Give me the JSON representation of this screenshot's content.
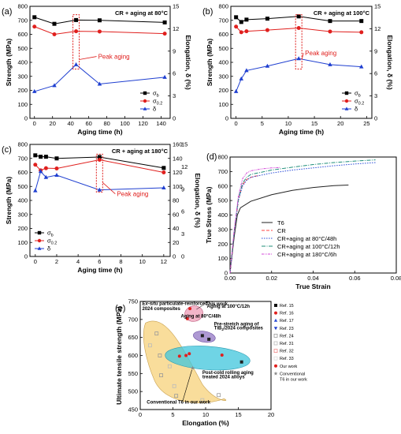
{
  "chart_data": [
    {
      "id": "a",
      "type": "line",
      "panel_label": "(a)",
      "title": "CR + aging at 80°C",
      "xlabel": "Aging time (h)",
      "ylabel": "Strength (MPa)",
      "y2label": "Elongation, δ (%)",
      "xlim": [
        -5,
        150
      ],
      "xticks": [
        0,
        20,
        40,
        60,
        80,
        100,
        120,
        140
      ],
      "ylim": [
        0,
        800
      ],
      "yticks": [
        0,
        100,
        200,
        300,
        400,
        500,
        600,
        700,
        800
      ],
      "y2lim": [
        0,
        15
      ],
      "y2ticks": [
        0,
        3,
        6,
        9,
        12,
        15
      ],
      "peak_label": "Peak aging",
      "series": [
        {
          "name": "σb",
          "legend": "σ",
          "legend_sub": "b",
          "color": "#000000",
          "marker": "square",
          "axis": "left",
          "x": [
            0,
            22,
            46,
            72,
            144
          ],
          "y": [
            722,
            675,
            702,
            700,
            685
          ]
        },
        {
          "name": "σ0.2",
          "legend": "σ",
          "legend_sub": "0.2",
          "color": "#e0201e",
          "marker": "circle",
          "axis": "left",
          "x": [
            0,
            22,
            46,
            72,
            144
          ],
          "y": [
            655,
            600,
            622,
            620,
            605
          ]
        },
        {
          "name": "δ",
          "legend": "δ",
          "legend_sub": "",
          "color": "#1f3fd0",
          "marker": "triangle",
          "axis": "right",
          "x": [
            0,
            22,
            46,
            72,
            144
          ],
          "y": [
            3.6,
            4.4,
            7.2,
            4.6,
            5.5
          ]
        }
      ]
    },
    {
      "id": "b",
      "type": "line",
      "panel_label": "(b)",
      "title": "CR + aging at 100°C",
      "xlabel": "Aging time (h)",
      "ylabel": "Strength (MPa)",
      "y2label": "Elongation, δ (%)",
      "xlim": [
        -1,
        26
      ],
      "xticks": [
        0,
        5,
        10,
        15,
        20,
        25
      ],
      "ylim": [
        0,
        800
      ],
      "yticks": [
        0,
        100,
        200,
        300,
        400,
        500,
        600,
        700,
        800
      ],
      "y2lim": [
        0,
        15
      ],
      "y2ticks": [
        0,
        3,
        6,
        9,
        12,
        15
      ],
      "peak_label": "Peak aging",
      "series": [
        {
          "name": "σb",
          "legend": "σ",
          "legend_sub": "b",
          "color": "#000000",
          "marker": "square",
          "axis": "left",
          "x": [
            0,
            1,
            2,
            6,
            12,
            18,
            24
          ],
          "y": [
            722,
            688,
            705,
            712,
            728,
            695,
            695
          ]
        },
        {
          "name": "σ0.2",
          "legend": "σ",
          "legend_sub": "0.2",
          "color": "#e0201e",
          "marker": "circle",
          "axis": "left",
          "x": [
            0,
            1,
            2,
            6,
            12,
            18,
            24
          ],
          "y": [
            655,
            615,
            622,
            630,
            645,
            620,
            615
          ]
        },
        {
          "name": "δ",
          "legend": "δ",
          "legend_sub": "",
          "color": "#1f3fd0",
          "marker": "triangle",
          "axis": "right",
          "x": [
            0,
            1,
            2,
            6,
            12,
            18,
            24
          ],
          "y": [
            3.6,
            5.3,
            6.4,
            7.0,
            8.0,
            7.2,
            6.9
          ]
        }
      ]
    },
    {
      "id": "c",
      "type": "line",
      "panel_label": "(c)",
      "title": "CR + aging at 180°C",
      "xlabel": "Aging time (h)",
      "ylabel": "Strength (MPa)",
      "y2label": "Elongation, δ (%)",
      "xlim": [
        -0.5,
        12.6
      ],
      "xticks": [
        0,
        2,
        4,
        6,
        8,
        10,
        12
      ],
      "ylim": [
        0,
        800
      ],
      "yticks": [
        0,
        100,
        200,
        300,
        400,
        500,
        600,
        700,
        800
      ],
      "y2lim": [
        0,
        160
      ],
      "y2ticks": [
        0,
        20,
        40,
        60,
        80,
        100,
        120,
        140,
        160
      ],
      "y2ticks_mirror": [
        0,
        3,
        6,
        9,
        12,
        15
      ],
      "peak_label": "Peak aging",
      "series": [
        {
          "name": "σb",
          "legend": "σ",
          "legend_sub": "b",
          "color": "#000000",
          "marker": "square",
          "axis": "left",
          "x": [
            0,
            0.5,
            1,
            2,
            6,
            12
          ],
          "y": [
            722,
            712,
            712,
            700,
            710,
            632
          ]
        },
        {
          "name": "σ0.2",
          "legend": "σ",
          "legend_sub": "0.2",
          "color": "#e0201e",
          "marker": "circle",
          "axis": "left",
          "x": [
            0,
            0.5,
            1,
            2,
            6,
            12
          ],
          "y": [
            655,
            615,
            630,
            628,
            690,
            600
          ]
        },
        {
          "name": "δ",
          "legend": "δ",
          "legend_sub": "",
          "color": "#1f3fd0",
          "marker": "triangle",
          "axis": "left",
          "x": [
            0,
            0.5,
            1,
            2,
            6,
            12
          ],
          "y": [
            470,
            607,
            565,
            580,
            475,
            490
          ]
        }
      ]
    },
    {
      "id": "d",
      "type": "line",
      "panel_label": "(d)",
      "xlabel": "True Strain",
      "ylabel": "True Stress (MPa)",
      "xlim": [
        0,
        0.08
      ],
      "xticks": [
        0,
        0.02,
        0.04,
        0.06,
        0.08
      ],
      "xtick_labels": [
        "0.00",
        "0.02",
        "0.04",
        "0.06",
        "0.08"
      ],
      "ylim": [
        0,
        800
      ],
      "yticks": [
        0,
        100,
        200,
        300,
        400,
        500,
        600,
        700,
        800
      ],
      "series": [
        {
          "name": "T6",
          "color": "#222222",
          "dash": "",
          "x": [
            0,
            0.002,
            0.0035,
            0.005,
            0.01,
            0.02,
            0.03,
            0.04,
            0.05,
            0.057
          ],
          "y": [
            0,
            250,
            400,
            450,
            495,
            540,
            570,
            590,
            603,
            607
          ]
        },
        {
          "name": "CR",
          "color": "#ff4444",
          "dash": "4,2",
          "x": [
            0,
            0.002,
            0.004,
            0.006,
            0.008,
            0.01,
            0.012,
            0.014
          ],
          "y": [
            0,
            280,
            500,
            610,
            645,
            660,
            668,
            672
          ]
        },
        {
          "name": "CR+aging at 80°C/48h",
          "color": "#2a4bd8",
          "dash": "1.5,1.5",
          "x": [
            0,
            0.002,
            0.004,
            0.006,
            0.008,
            0.01,
            0.02,
            0.03,
            0.04,
            0.05,
            0.06,
            0.07
          ],
          "y": [
            0,
            280,
            500,
            600,
            640,
            660,
            690,
            710,
            725,
            740,
            752,
            762
          ]
        },
        {
          "name": "CR+aging at 100°C/12h",
          "color": "#1f8f7a",
          "dash": "5,1.5,1,1.5",
          "x": [
            0,
            0.002,
            0.004,
            0.006,
            0.008,
            0.01,
            0.02,
            0.03,
            0.04,
            0.05,
            0.06,
            0.07
          ],
          "y": [
            0,
            290,
            510,
            620,
            660,
            680,
            710,
            730,
            748,
            762,
            772,
            780
          ]
        },
        {
          "name": "CR+aging at 180°C/6h",
          "color": "#d34ad8",
          "dash": "3,1,1,1,1,1",
          "x": [
            0,
            0.002,
            0.004,
            0.006,
            0.008,
            0.01,
            0.015,
            0.02,
            0.024
          ],
          "y": [
            0,
            300,
            530,
            650,
            690,
            705,
            718,
            725,
            728
          ]
        }
      ]
    },
    {
      "id": "e",
      "type": "scatter",
      "panel_label": "(e)",
      "xlabel": "Elongation (%)",
      "ylabel": "Ultimate tensile strength (MPa)",
      "xlim": [
        0,
        20
      ],
      "xticks": [
        0,
        5,
        10,
        15,
        20
      ],
      "ylim": [
        450,
        750
      ],
      "yticks": [
        450,
        500,
        550,
        600,
        650,
        700,
        750
      ],
      "annotations": {
        "exsitu_1": "Ex-situ",
        "exsitu_2": " particulate-reinforced",
        "exsitu_3": "2024 composites",
        "thiswork": "This work",
        "aging100": "Aging at 100°C/12h",
        "aging80": "Aging at 80°C/48h",
        "prestretch_1": "Pre-stretch  aging of",
        "prestretch_2": "TiB",
        "prestretch_sub": "2",
        "prestretch_3": "/2024 composites",
        "coldroll_1": "Post-cold rolling aging",
        "coldroll_2": "treated 2024 alloys",
        "conv": "Conventional T6 in our work"
      },
      "legend": [
        {
          "label": "Ref. 15",
          "marker": "square",
          "color": "#111111"
        },
        {
          "label": "Ref. 16",
          "marker": "circle",
          "color": "#e0201e"
        },
        {
          "label": "Ref. 17",
          "marker": "triangle",
          "color": "#2a4bd8"
        },
        {
          "label": "Ref. 23",
          "marker": "tri-down",
          "color": "#1f3fd0"
        },
        {
          "label": "Ref. 24",
          "marker": "square-open",
          "color": "#999999"
        },
        {
          "label": "Ref. 31",
          "marker": "square-open",
          "color": "#bbbbbb"
        },
        {
          "label": "Ref. 32",
          "marker": "square-open",
          "color": "#e88"
        },
        {
          "label": "Ref. 33",
          "marker": "square-open",
          "color": "#ddd"
        },
        {
          "label": "Our work",
          "marker": "circle",
          "color": "#e0201e"
        },
        {
          "label": "Conventional",
          "label2": "T6 in our work",
          "marker": "star",
          "color": "#888888"
        }
      ],
      "points": [
        {
          "x": 7.6,
          "y": 730,
          "marker": "circle",
          "color": "#e0201e"
        },
        {
          "x": 7.2,
          "y": 702,
          "marker": "circle",
          "color": "#e0201e"
        },
        {
          "x": 9.5,
          "y": 655,
          "marker": "square",
          "color": "#222222"
        },
        {
          "x": 10.5,
          "y": 645,
          "marker": "square",
          "color": "#222222"
        },
        {
          "x": 6.0,
          "y": 598,
          "marker": "circle",
          "color": "#e0201e"
        },
        {
          "x": 7.0,
          "y": 600,
          "marker": "circle",
          "color": "#e0201e"
        },
        {
          "x": 7.5,
          "y": 605,
          "marker": "circle",
          "color": "#e0201e"
        },
        {
          "x": 12.5,
          "y": 601,
          "marker": "circle",
          "color": "#e0201e"
        },
        {
          "x": 15.5,
          "y": 582,
          "marker": "square",
          "color": "#222222"
        },
        {
          "x": 2.5,
          "y": 661,
          "marker": "square-open",
          "color": "#999999"
        },
        {
          "x": 1.5,
          "y": 628,
          "marker": "square-open",
          "color": "#bbbbbb"
        },
        {
          "x": 3.0,
          "y": 600,
          "marker": "square-open",
          "color": "#999999"
        },
        {
          "x": 4.5,
          "y": 570,
          "marker": "square-open",
          "color": "#bbbbbb"
        },
        {
          "x": 3.2,
          "y": 545,
          "marker": "square-open",
          "color": "#999999"
        },
        {
          "x": 5.2,
          "y": 515,
          "marker": "square-open",
          "color": "#bbbbbb"
        },
        {
          "x": 5.5,
          "y": 488,
          "marker": "square-open",
          "color": "#999999"
        },
        {
          "x": 8.0,
          "y": 565,
          "marker": "star",
          "color": "#888888"
        },
        {
          "x": 9.5,
          "y": 476,
          "marker": "square-open",
          "color": "#bbbbbb"
        },
        {
          "x": 12.0,
          "y": 490,
          "marker": "square-open",
          "color": "#999999"
        }
      ]
    }
  ]
}
